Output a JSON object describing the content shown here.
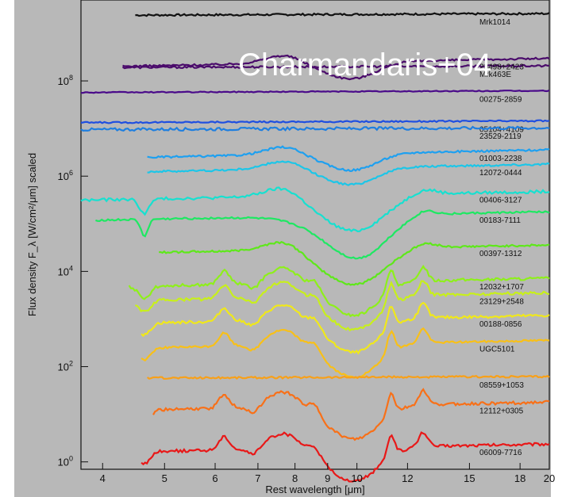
{
  "chart_data": {
    "type": "line",
    "title": "",
    "xlabel": "Rest wavelength [μm]",
    "ylabel": "Flux density F_λ [W/cm²/μm] scaled",
    "xscale": "log",
    "yscale": "log",
    "xlim": [
      3.7,
      20
    ],
    "ylim": [
      0.7,
      5000000000.0
    ],
    "xticks": [
      4,
      5,
      6,
      7,
      8,
      9,
      10,
      12,
      15,
      18,
      20
    ],
    "yticks": [
      {
        "value": 1,
        "label": "10^0"
      },
      {
        "value": 100,
        "label": "10^2"
      },
      {
        "value": 10000,
        "label": "10^4"
      },
      {
        "value": 1000000,
        "label": "10^6"
      },
      {
        "value": 100000000,
        "label": "10^8"
      }
    ],
    "grid": false,
    "legend": "inline labels at curve ends",
    "annotation": "Charmandaris+04",
    "series": [
      {
        "name": "Mrk1014",
        "color": "#111111",
        "xstart": 4.5,
        "level": 2500000000.0,
        "shape": "flat",
        "noise": 0.02
      },
      {
        "name": "Mrk463E",
        "color": "#4a0b6b",
        "xstart": 4.3,
        "level": 200000000.0,
        "shape": "flat",
        "noise": 0.02
      },
      {
        "name": "23498+2423",
        "color": "#4a0b6b",
        "xstart": 4.3,
        "level": 250000000.0,
        "shape": "weakpah",
        "noise": 0.02
      },
      {
        "name": "00275-2859",
        "color": "#4a0b8a",
        "xstart": 3.7,
        "level": 60000000.0,
        "shape": "flat",
        "noise": 0.01
      },
      {
        "name": "05104+4109",
        "color": "#1f4fe0",
        "xstart": 3.7,
        "level": 14000000.0,
        "shape": "flat",
        "noise": 0.015
      },
      {
        "name": "23529-2119",
        "color": "#1f7fe0",
        "xstart": 3.7,
        "level": 10000000.0,
        "shape": "flat",
        "noise": 0.03
      },
      {
        "name": "01003-2238",
        "color": "#1ea0f0",
        "xstart": 4.7,
        "level": 3000000.0,
        "shape": "weakpah",
        "noise": 0.02
      },
      {
        "name": "12072-0444",
        "color": "#1cc6e8",
        "xstart": 4.7,
        "level": 1500000.0,
        "shape": "weakpah",
        "noise": 0.02
      },
      {
        "name": "00406-3127",
        "color": "#17e0d0",
        "xstart": 3.7,
        "level": 400000.0,
        "shape": "silicate",
        "noise": 0.03
      },
      {
        "name": "00183-7111",
        "color": "#1ee862",
        "xstart": 3.9,
        "level": 150000.0,
        "shape": "ice",
        "noise": 0.02
      },
      {
        "name": "00397-1312",
        "color": "#5ee81a",
        "xstart": 4.9,
        "level": 30000.0,
        "shape": "silicate",
        "noise": 0.02
      },
      {
        "name": "12032+1707",
        "color": "#8ef01a",
        "xstart": 4.4,
        "level": 6000.0,
        "shape": "pah",
        "noise": 0.03
      },
      {
        "name": "23129+2548",
        "color": "#c8f01a",
        "xstart": 4.5,
        "level": 3000.0,
        "shape": "pah",
        "noise": 0.03
      },
      {
        "name": "00188-0856",
        "color": "#f0e81a",
        "xstart": 4.6,
        "level": 1000.0,
        "shape": "pah",
        "noise": 0.03
      },
      {
        "name": "UGC5101",
        "color": "#f8c018",
        "xstart": 4.6,
        "level": 300,
        "shape": "pah",
        "noise": 0.02
      },
      {
        "name": "08559+1053",
        "color": "#f8a018",
        "xstart": 4.7,
        "level": 60,
        "shape": "flat",
        "noise": 0.02
      },
      {
        "name": "12112+0305",
        "color": "#f87018",
        "xstart": 4.8,
        "level": 15,
        "shape": "pah",
        "noise": 0.03
      },
      {
        "name": "06009-7716",
        "color": "#e81818",
        "xstart": 4.6,
        "level": 2,
        "shape": "pah",
        "noise": 0.03
      }
    ]
  }
}
